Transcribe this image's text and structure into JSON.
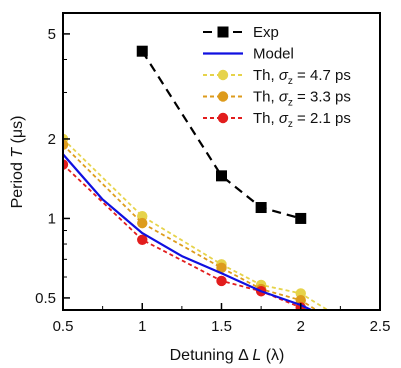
{
  "chart_data": {
    "type": "line",
    "xlabel": {
      "pre": "Detuning Δ ",
      "var": "L",
      "post": " (λ)"
    },
    "ylabel": {
      "pre": "Period ",
      "var": "T",
      "post": " (μs)"
    },
    "xlim": [
      0.5,
      2.5
    ],
    "ylim": [
      0.45,
      6.0
    ],
    "yscale": "log",
    "grid": false,
    "legend_position": "top-right",
    "xticks": [
      0.5,
      1,
      1.5,
      2,
      2.5
    ],
    "xtick_labels": [
      "0.5",
      "1",
      "1.5",
      "2",
      "2.5"
    ],
    "yticks": [
      0.5,
      1,
      2,
      5
    ],
    "ytick_labels": [
      "0.5",
      "1",
      "2",
      "5"
    ],
    "series": [
      {
        "name": "Exp",
        "style": "dashed",
        "marker": "square",
        "color": "#000000",
        "x": [
          1.0,
          1.5,
          1.75,
          2.0
        ],
        "y": [
          4.3,
          1.45,
          1.1,
          1.0
        ]
      },
      {
        "name": "Model",
        "style": "solid",
        "marker": "none",
        "color": "#1010e0",
        "x": [
          0.5,
          0.75,
          1.0,
          1.25,
          1.5,
          1.75,
          2.0,
          2.1,
          2.2
        ],
        "y": [
          1.75,
          1.18,
          0.88,
          0.72,
          0.62,
          0.53,
          0.47,
          0.44,
          0.42
        ]
      },
      {
        "name": {
          "pre": "Th, ",
          "var": "σ",
          "sub": "z",
          "post": " = 4.7 ps"
        },
        "style": "dotted",
        "marker": "circle",
        "color": "#e6d34a",
        "x": [
          0.5,
          1.0,
          1.5,
          1.75,
          2.0,
          2.25
        ],
        "y": [
          2.0,
          1.02,
          0.67,
          0.56,
          0.52,
          0.42
        ]
      },
      {
        "name": {
          "pre": "Th, ",
          "var": "σ",
          "sub": "z",
          "post": " = 3.3 ps"
        },
        "style": "dotted",
        "marker": "circle",
        "color": "#dd9b1c",
        "x": [
          0.5,
          1.0,
          1.5,
          1.75,
          2.0,
          2.15
        ],
        "y": [
          1.9,
          0.96,
          0.65,
          0.54,
          0.49,
          0.43
        ]
      },
      {
        "name": {
          "pre": "Th, ",
          "var": "σ",
          "sub": "z",
          "post": " = 2.1 ps"
        },
        "style": "dotted",
        "marker": "circle",
        "color": "#e21d1d",
        "x": [
          0.5,
          1.0,
          1.5,
          1.75,
          2.0
        ],
        "y": [
          1.6,
          0.83,
          0.58,
          0.53,
          0.46
        ]
      }
    ]
  }
}
